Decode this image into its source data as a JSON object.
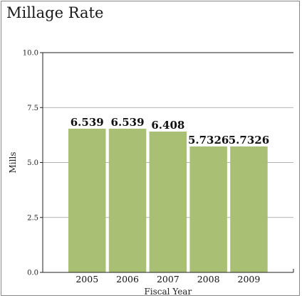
{
  "chart_data": {
    "type": "bar",
    "title": "Millage Rate",
    "xlabel": "Fiscal Year",
    "ylabel": "Mills",
    "categories": [
      "2005",
      "2006",
      "2007",
      "2008",
      "2009"
    ],
    "values": [
      6.539,
      6.539,
      6.408,
      5.7326,
      5.7326
    ],
    "data_labels": [
      "6.539",
      "6.539",
      "6.408",
      "5.7326",
      "5.7326"
    ],
    "ylim": [
      0,
      10
    ],
    "yticks": [
      "0.0",
      "2.5",
      "5.0",
      "7.5",
      "10.0"
    ],
    "grid": true,
    "bar_color": "#a9bf73"
  }
}
